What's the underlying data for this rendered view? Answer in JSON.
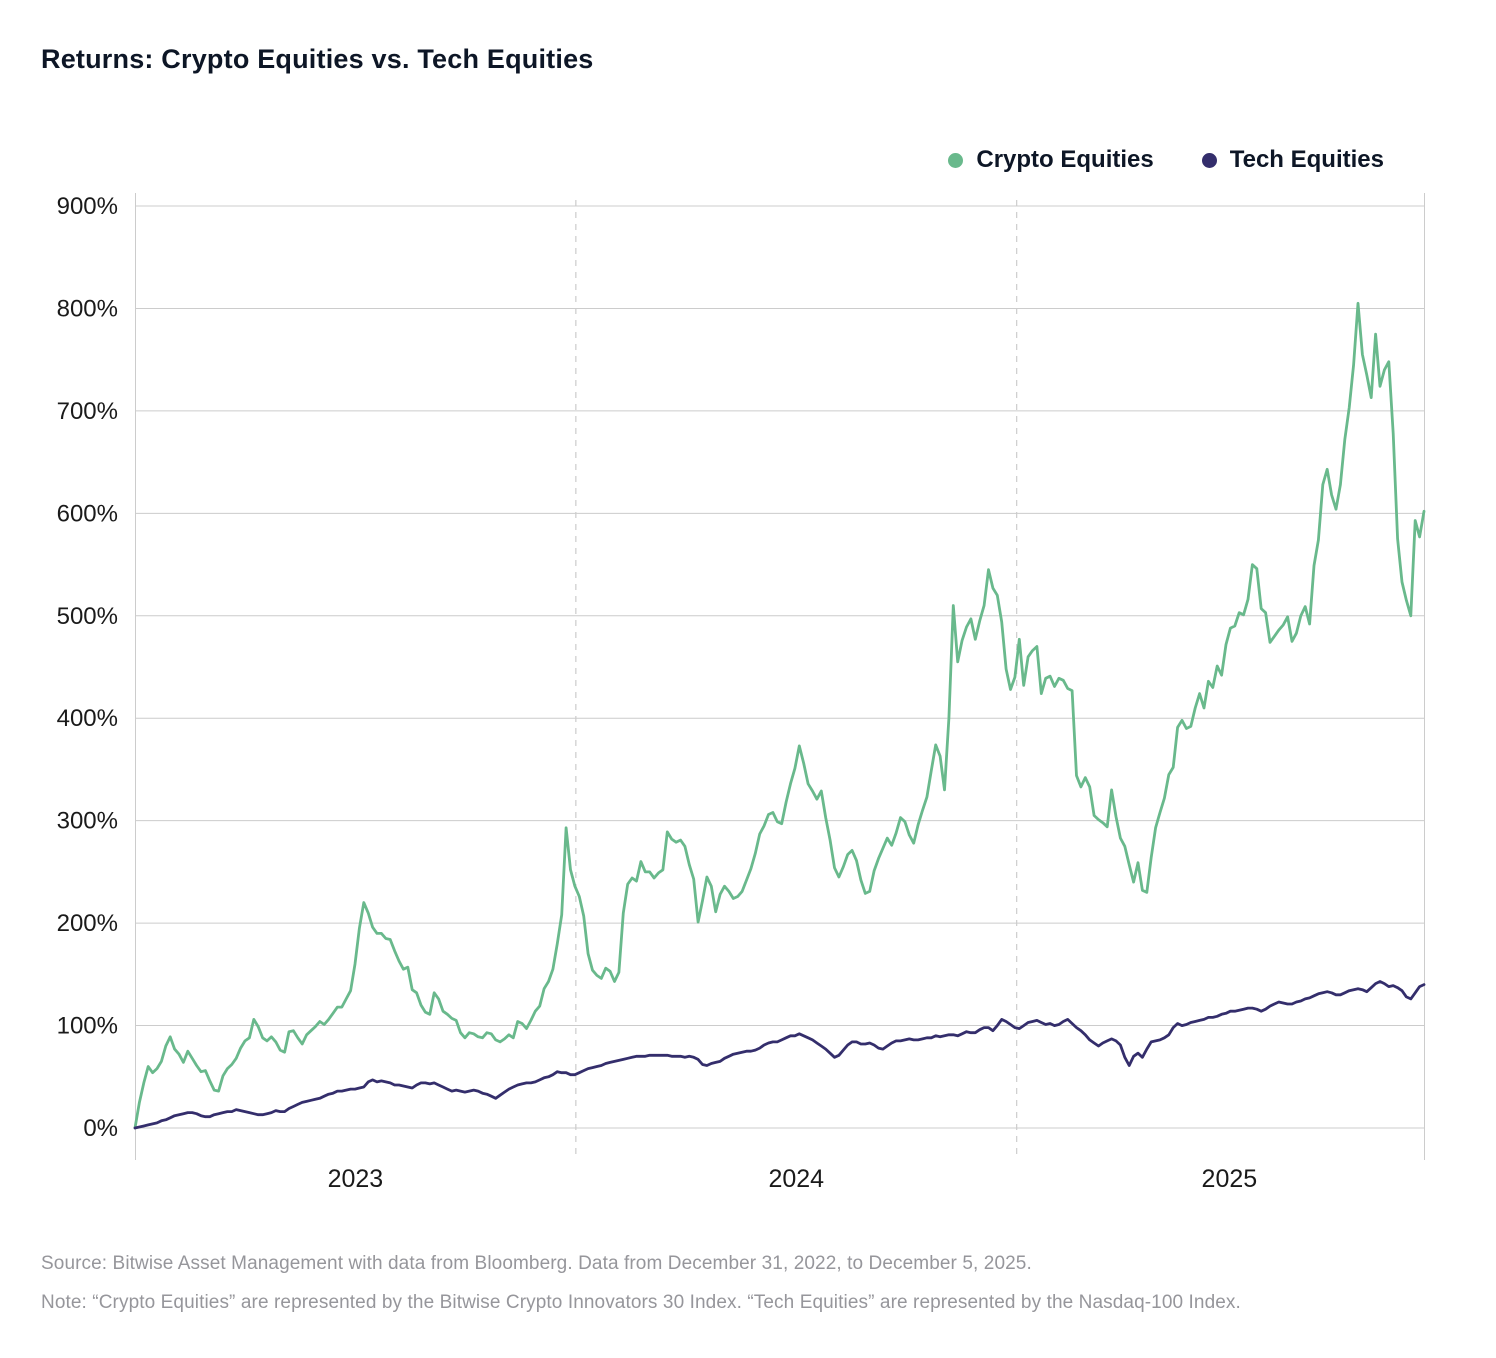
{
  "title": "Returns: Crypto Equities vs. Tech Equities",
  "legend": [
    {
      "label": "Crypto Equities",
      "color": "#69b98c"
    },
    {
      "label": "Tech Equities",
      "color": "#342e6c"
    }
  ],
  "footer": {
    "source": "Source: Bitwise Asset Management with data from Bloomberg. Data from December 31, 2022, to December 5, 2025.",
    "note": "Note: “Crypto Equities” are represented by the Bitwise Crypto Innovators 30 Index. “Tech Equities” are represented by the Nasdaq-100 Index."
  },
  "chart_data": {
    "type": "line",
    "title": "Returns: Crypto Equities vs. Tech Equities",
    "x_unit": "years since 2022-12-31 (data through 2025-12-05)",
    "x_start": 0,
    "x_end": 2.93,
    "ylim": [
      0,
      900
    ],
    "grid": true,
    "grid_color": "#cccccc",
    "tick_color": "#1a1a1a",
    "legend_position": "top-right",
    "y_ticks": [
      {
        "value": 0,
        "label": "0%"
      },
      {
        "value": 100,
        "label": "100%"
      },
      {
        "value": 200,
        "label": "200%"
      },
      {
        "value": 300,
        "label": "300%"
      },
      {
        "value": 400,
        "label": "400%"
      },
      {
        "value": 500,
        "label": "500%"
      },
      {
        "value": 600,
        "label": "600%"
      },
      {
        "value": 700,
        "label": "700%"
      },
      {
        "value": 800,
        "label": "800%"
      },
      {
        "value": 900,
        "label": "900%"
      }
    ],
    "x_labels": [
      {
        "label": "2023",
        "f": 0.171
      },
      {
        "label": "2024",
        "f": 0.513
      },
      {
        "label": "2025",
        "f": 0.849
      }
    ],
    "year_boundaries_f": [
      0.342,
      0.684
    ],
    "series": [
      {
        "name": "Crypto Equities",
        "color": "#69b98c",
        "values": [
          0,
          25,
          44,
          60,
          54,
          58,
          65,
          80,
          89,
          77,
          72,
          64,
          75,
          68,
          61,
          55,
          56,
          46,
          37,
          36,
          51,
          58,
          62,
          68,
          78,
          85,
          88,
          106,
          99,
          88,
          85,
          89,
          84,
          76,
          74,
          94,
          95,
          88,
          82,
          91,
          95,
          99,
          104,
          101,
          106,
          112,
          118,
          118,
          126,
          134,
          160,
          195,
          220,
          210,
          196,
          190,
          190,
          185,
          184,
          173,
          163,
          155,
          157,
          135,
          132,
          120,
          113,
          111,
          132,
          126,
          114,
          111,
          107,
          105,
          93,
          88,
          93,
          92,
          89,
          88,
          93,
          92,
          86,
          84,
          87,
          91,
          88,
          104,
          102,
          97,
          105,
          114,
          119,
          136,
          143,
          155,
          180,
          208,
          293,
          252,
          236,
          226,
          207,
          170,
          154,
          149,
          146,
          156,
          153,
          143,
          152,
          210,
          238,
          244,
          241,
          260,
          250,
          250,
          244,
          249,
          252,
          289,
          282,
          279,
          281,
          275,
          257,
          243,
          201,
          222,
          245,
          236,
          211,
          228,
          236,
          231,
          224,
          226,
          231,
          242,
          253,
          268,
          287,
          295,
          306,
          308,
          299,
          297,
          318,
          336,
          351,
          373,
          356,
          336,
          329,
          321,
          329,
          303,
          281,
          254,
          245,
          255,
          267,
          271,
          261,
          242,
          229,
          231,
          251,
          263,
          273,
          283,
          276,
          288,
          303,
          299,
          286,
          278,
          296,
          310,
          323,
          349,
          374,
          363,
          330,
          400,
          510,
          455,
          476,
          489,
          497,
          477,
          495,
          510,
          545,
          527,
          520,
          494,
          448,
          428,
          440,
          477,
          432,
          460,
          466,
          470,
          424,
          439,
          441,
          431,
          439,
          437,
          429,
          427,
          344,
          333,
          342,
          333,
          305,
          301,
          298,
          294,
          330,
          304,
          283,
          275,
          257,
          240,
          259,
          232,
          230,
          264,
          293,
          308,
          322,
          345,
          352,
          391,
          398,
          390,
          392,
          410,
          424,
          410,
          436,
          430,
          451,
          442,
          472,
          488,
          490,
          503,
          501,
          516,
          550,
          546,
          507,
          503,
          474,
          480,
          486,
          491,
          499,
          475,
          483,
          500,
          509,
          492,
          549,
          574,
          628,
          643,
          618,
          604,
          628,
          672,
          703,
          745,
          805,
          755,
          735,
          713,
          775,
          724,
          740,
          748,
          678,
          575,
          533,
          515,
          500,
          593,
          577,
          602
        ]
      },
      {
        "name": "Tech Equities",
        "color": "#342e6c",
        "values": [
          0,
          1,
          2,
          3,
          4,
          5,
          7,
          8,
          10,
          12,
          13,
          14,
          15,
          15,
          14,
          12,
          11,
          11,
          13,
          14,
          15,
          16,
          16,
          18,
          17,
          16,
          15,
          14,
          13,
          13,
          14,
          15,
          17,
          16,
          16,
          19,
          21,
          23,
          25,
          26,
          27,
          28,
          29,
          31,
          33,
          34,
          36,
          36,
          37,
          38,
          38,
          39,
          40,
          45,
          47,
          45,
          46,
          45,
          44,
          42,
          42,
          41,
          40,
          39,
          42,
          44,
          44,
          43,
          44,
          42,
          40,
          38,
          36,
          37,
          36,
          35,
          36,
          37,
          36,
          34,
          33,
          31,
          29,
          32,
          35,
          38,
          40,
          42,
          43,
          44,
          44,
          45,
          47,
          49,
          50,
          52,
          55,
          54,
          54,
          52,
          52,
          54,
          56,
          58,
          59,
          60,
          61,
          63,
          64,
          65,
          66,
          67,
          68,
          69,
          70,
          70,
          70,
          71,
          71,
          71,
          71,
          71,
          70,
          70,
          70,
          69,
          70,
          69,
          67,
          62,
          61,
          63,
          64,
          65,
          68,
          70,
          72,
          73,
          74,
          75,
          75,
          76,
          78,
          81,
          83,
          84,
          84,
          86,
          88,
          90,
          90,
          92,
          90,
          88,
          86,
          83,
          80,
          77,
          73,
          69,
          71,
          76,
          81,
          84,
          84,
          82,
          82,
          83,
          81,
          78,
          77,
          80,
          83,
          85,
          85,
          86,
          87,
          86,
          86,
          87,
          88,
          88,
          90,
          89,
          90,
          91,
          91,
          90,
          92,
          94,
          93,
          93,
          96,
          98,
          98,
          95,
          100,
          106,
          104,
          101,
          98,
          97,
          100,
          103,
          104,
          105,
          103,
          101,
          102,
          100,
          101,
          104,
          106,
          102,
          98,
          95,
          91,
          86,
          83,
          80,
          83,
          85,
          87,
          85,
          81,
          69,
          61,
          70,
          73,
          69,
          77,
          84,
          85,
          86,
          88,
          91,
          98,
          102,
          100,
          101,
          103,
          104,
          105,
          106,
          108,
          108,
          109,
          111,
          112,
          114,
          114,
          115,
          116,
          117,
          117,
          116,
          114,
          116,
          119,
          121,
          123,
          122,
          121,
          121,
          123,
          124,
          126,
          127,
          129,
          131,
          132,
          133,
          132,
          130,
          130,
          132,
          134,
          135,
          136,
          135,
          133,
          137,
          141,
          143,
          141,
          138,
          139,
          137,
          134,
          128,
          126,
          132,
          138,
          140
        ]
      }
    ]
  }
}
